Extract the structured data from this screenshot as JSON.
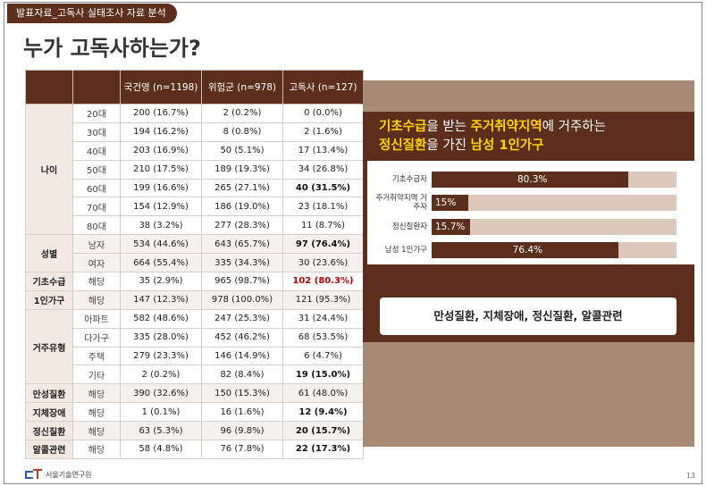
{
  "header": {
    "tag": "발표자료_고독사 실태조사 자료 분석",
    "title": "누가 고독사하는가?"
  },
  "table": {
    "columns": [
      "",
      "",
      "국건영 (n=1198)",
      "위험군 (n=978)",
      "고독사 (n=127)"
    ],
    "groups": [
      {
        "label": "나이",
        "rows": [
          {
            "sub": "20대",
            "a": "200 (16.7%)",
            "b": "2 (0.2%)",
            "c": "0 (0.0%)"
          },
          {
            "sub": "30대",
            "a": "194 (16.2%)",
            "b": "8 (0.8%)",
            "c": "2 (1.6%)"
          },
          {
            "sub": "40대",
            "a": "203 (16.9%)",
            "b": "50 (5.1%)",
            "c": "17 (13.4%)"
          },
          {
            "sub": "50대",
            "a": "210 (17.5%)",
            "b": "189 (19.3%)",
            "c": "34 (26.8%)"
          },
          {
            "sub": "60대",
            "a": "199 (16.6%)",
            "b": "265 (27.1%)",
            "c": "40 (31.5%)"
          },
          {
            "sub": "70대",
            "a": "154 (12.9%)",
            "b": "186 (19.0%)",
            "c": "23 (18.1%)"
          },
          {
            "sub": "80대",
            "a": "38 (3.2%)",
            "b": "277 (28.3%)",
            "c": "11 (8.7%)"
          }
        ]
      },
      {
        "label": "성별",
        "rows": [
          {
            "sub": "남자",
            "a": "534 (44.6%)",
            "b": "643 (65.7%)",
            "c": "97 (76.4%)"
          },
          {
            "sub": "여자",
            "a": "664 (55.4%)",
            "b": "335 (34.3%)",
            "c": "30 (23.6%)"
          }
        ]
      },
      {
        "label": "기초수급",
        "rows": [
          {
            "sub": "해당",
            "a": "35 (2.9%)",
            "b": "965 (98.7%)",
            "c": "102 (80.3%)"
          }
        ]
      },
      {
        "label": "1인가구",
        "rows": [
          {
            "sub": "해당",
            "a": "147 (12.3%)",
            "b": "978 (100.0%)",
            "c": "121 (95.3%)"
          }
        ]
      },
      {
        "label": "거주유형",
        "rows": [
          {
            "sub": "아파트",
            "a": "582 (48.6%)",
            "b": "247 (25.3%)",
            "c": "31 (24.4%)"
          },
          {
            "sub": "다가구",
            "a": "335 (28.0%)",
            "b": "452 (46.2%)",
            "c": "68 (53.5%)"
          },
          {
            "sub": "주택",
            "a": "279 (23.3%)",
            "b": "146 (14.9%)",
            "c": "6 (4.7%)"
          },
          {
            "sub": "기타",
            "a": "2 (0.2%)",
            "b": "82 (8.4%)",
            "c": "19 (15.0%)"
          }
        ]
      },
      {
        "label": "만성질환",
        "rows": [
          {
            "sub": "해당",
            "a": "390 (32.6%)",
            "b": "150 (15.3%)",
            "c": "61 (48.0%)"
          }
        ]
      },
      {
        "label": "지체장애",
        "rows": [
          {
            "sub": "해당",
            "a": "1 (0.1%)",
            "b": "16 (1.6%)",
            "c": "12 (9.4%)"
          }
        ]
      },
      {
        "label": "정신질환",
        "rows": [
          {
            "sub": "해당",
            "a": "63 (5.3%)",
            "b": "96 (9.8%)",
            "c": "20 (15.7%)"
          }
        ]
      },
      {
        "label": "알콜관련",
        "rows": [
          {
            "sub": "해당",
            "a": "58 (4.8%)",
            "b": "76 (7.8%)",
            "c": "22 (17.3%)"
          }
        ]
      }
    ]
  },
  "summary": {
    "headline_1a": "기초수급",
    "headline_1b": "을 받는 ",
    "headline_1c": "주거취약지역",
    "headline_1d": "에 거주하는",
    "headline_2a": "정신질환",
    "headline_2b": "을 가진 ",
    "headline_2c": "남성 1인가구",
    "bars": [
      {
        "label": "기초수급자",
        "pct": 80.3,
        "text": "80.3%"
      },
      {
        "label": "주거취약지역 거주자",
        "pct": 15,
        "text": "15%"
      },
      {
        "label": "정신질환자",
        "pct": 15.7,
        "text": "15.7%"
      },
      {
        "label": "남성 1인가구",
        "pct": 76.4,
        "text": "76.4%"
      }
    ],
    "diseases": "만성질환, 지체장애, 정신질환, 알콜관련"
  },
  "footer": {
    "logo_text": "서울기술연구원",
    "page": "13"
  },
  "colors": {
    "brand": "#5c2f1c",
    "panel": "#a98a77",
    "accent_yellow": "#ffd400",
    "red": "#c00000"
  }
}
